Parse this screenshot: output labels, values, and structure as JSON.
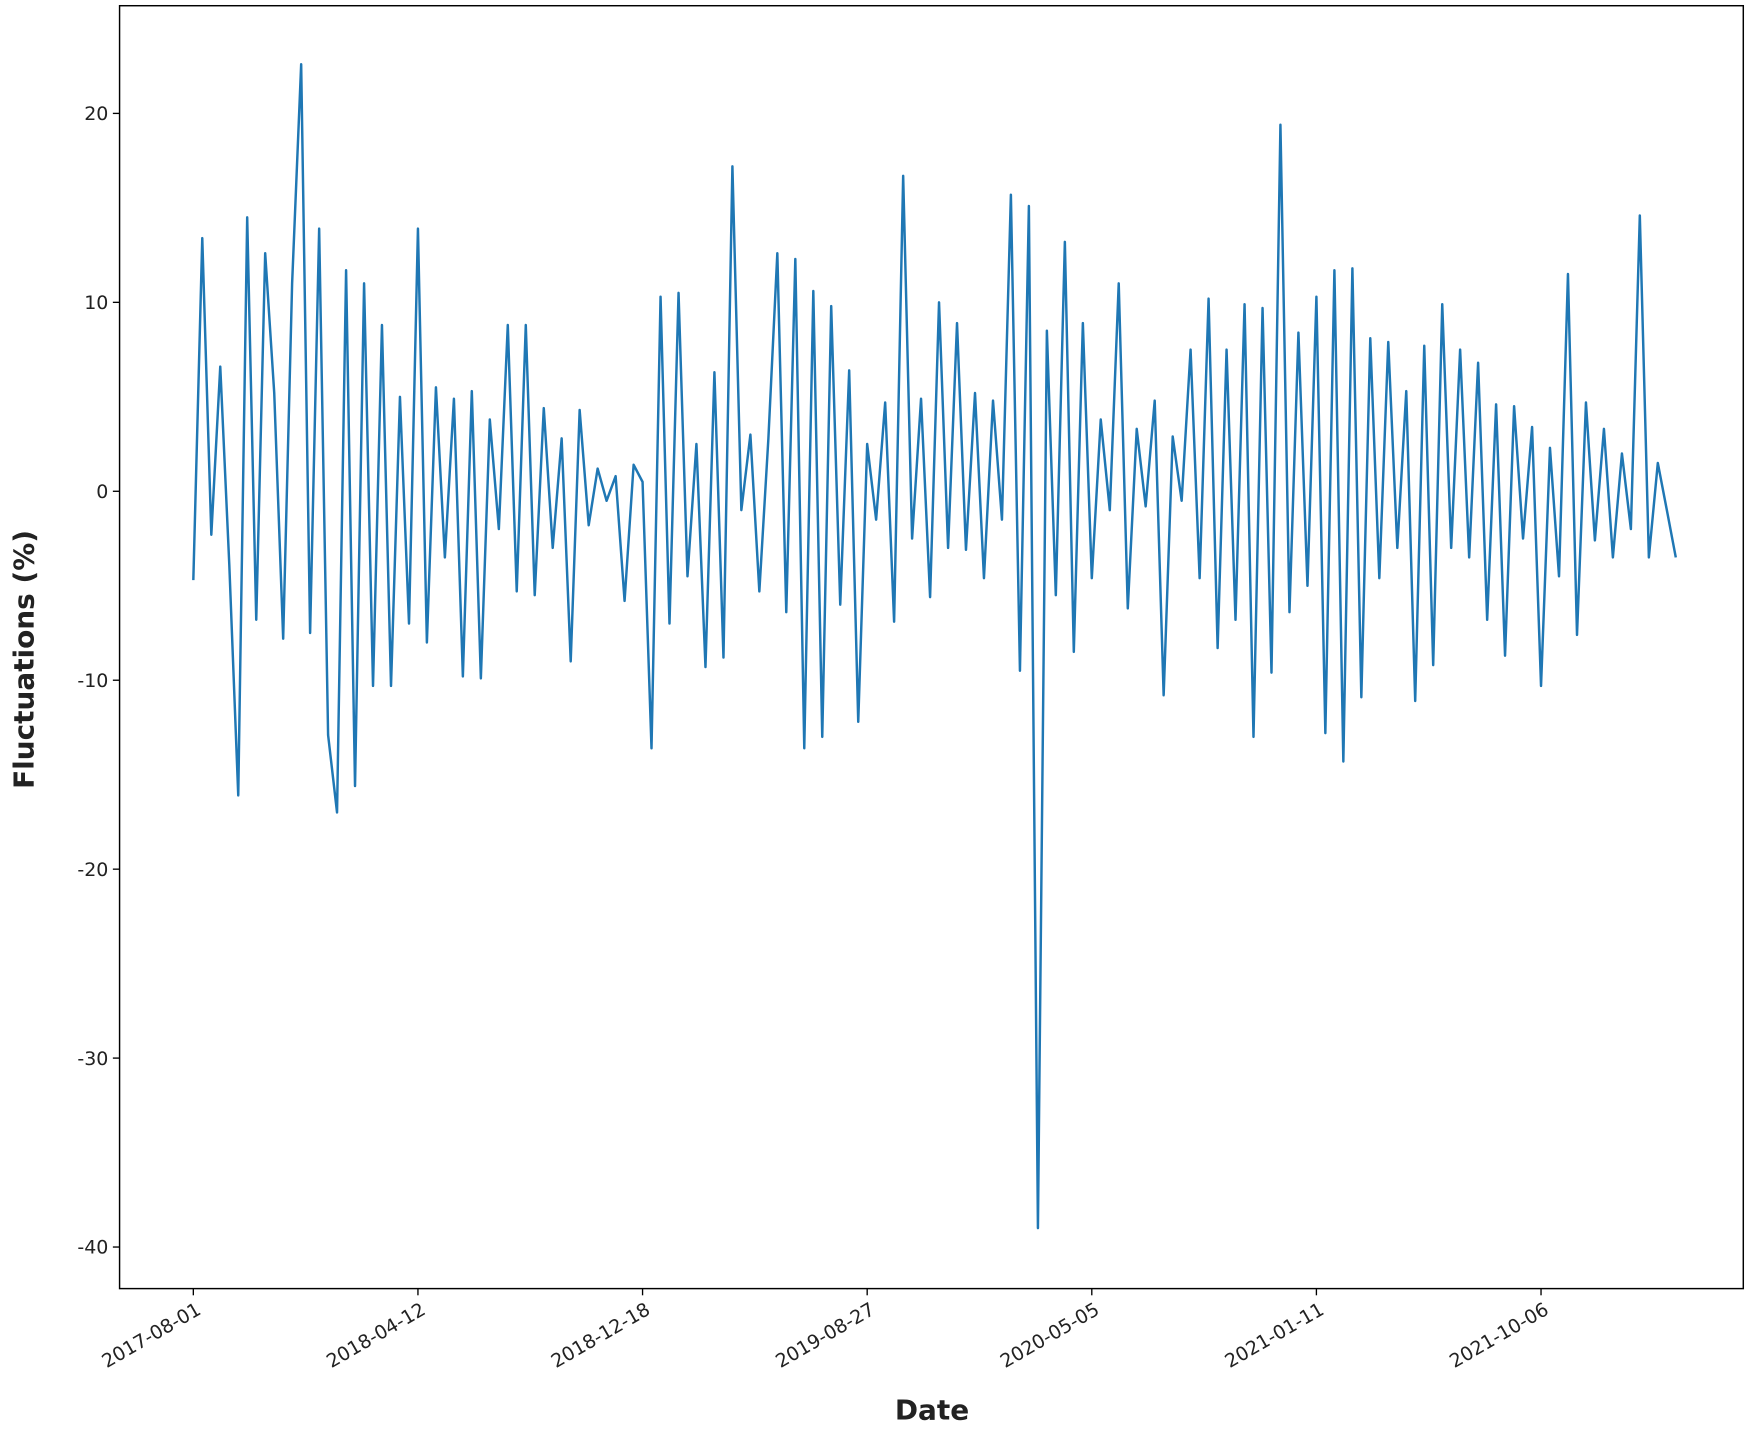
{
  "chart_data": {
    "type": "line",
    "xlabel": "Date",
    "ylabel": "Fluctuations (%)",
    "color": "#1f77b4",
    "grid": false,
    "ylim": [
      -42.2,
      25.7
    ],
    "yticks": [
      -40,
      -30,
      -20,
      -10,
      0,
      10,
      20
    ],
    "categories": [
      "2017-08-01",
      null,
      null,
      null,
      null,
      null,
      null,
      null,
      null,
      null,
      null,
      null,
      null,
      null,
      null,
      null,
      null,
      null,
      null,
      null,
      null,
      null,
      null,
      null,
      null,
      "2018-04-12",
      null,
      null,
      null,
      null,
      null,
      null,
      null,
      null,
      null,
      null,
      null,
      null,
      null,
      null,
      null,
      null,
      null,
      null,
      null,
      null,
      null,
      null,
      null,
      null,
      "2018-12-18",
      null,
      null,
      null,
      null,
      null,
      null,
      null,
      null,
      null,
      null,
      null,
      null,
      null,
      null,
      null,
      null,
      null,
      null,
      null,
      null,
      null,
      null,
      null,
      null,
      "2019-08-27",
      null,
      null,
      null,
      null,
      null,
      null,
      null,
      null,
      null,
      null,
      null,
      null,
      null,
      null,
      null,
      null,
      null,
      null,
      null,
      null,
      null,
      null,
      null,
      null,
      "2020-05-05",
      null,
      null,
      null,
      null,
      null,
      null,
      null,
      null,
      null,
      null,
      null,
      null,
      null,
      null,
      null,
      null,
      null,
      null,
      null,
      null,
      null,
      null,
      null,
      null,
      "2021-01-11",
      null,
      null,
      null,
      null,
      null,
      null,
      null,
      null,
      null,
      null,
      null,
      null,
      null,
      null,
      null,
      null,
      null,
      null,
      null,
      null,
      null,
      null,
      null,
      null,
      "2021-10-06",
      null,
      null,
      null,
      null,
      null,
      null,
      null,
      null,
      null,
      null,
      null,
      null,
      null,
      null,
      null
    ],
    "values": [
      -4.7,
      13.4,
      -2.3,
      6.6,
      -3.9,
      -16.1,
      14.5,
      -6.8,
      12.6,
      5.2,
      -7.8,
      11.0,
      22.6,
      -7.5,
      13.9,
      -12.9,
      -17.0,
      11.7,
      -15.6,
      11.0,
      -10.3,
      8.8,
      -10.3,
      5.0,
      -7.0,
      13.9,
      -8.0,
      5.5,
      -3.5,
      4.9,
      -9.8,
      5.3,
      -9.9,
      3.8,
      -2.0,
      8.8,
      -5.3,
      8.8,
      -5.5,
      4.4,
      -3.0,
      2.8,
      -9.0,
      4.3,
      -1.8,
      1.2,
      -0.5,
      0.8,
      -5.8,
      1.4,
      0.5,
      -13.6,
      10.3,
      -7.0,
      10.5,
      -4.5,
      2.5,
      -9.3,
      6.3,
      -8.8,
      17.2,
      -1.0,
      3.0,
      -5.3,
      2.8,
      12.6,
      -6.4,
      12.3,
      -13.6,
      10.6,
      -13.0,
      9.8,
      -6.0,
      6.4,
      -12.2,
      2.5,
      -1.5,
      4.7,
      -6.9,
      16.7,
      -2.5,
      4.9,
      -5.6,
      10.0,
      -3.0,
      8.9,
      -3.1,
      5.2,
      -4.6,
      4.8,
      -1.5,
      15.7,
      -9.5,
      15.1,
      -39.0,
      8.5,
      -5.5,
      13.2,
      -8.5,
      8.9,
      -4.6,
      3.8,
      -1.0,
      11.0,
      -6.2,
      3.3,
      -0.8,
      4.8,
      -10.8,
      2.9,
      -0.5,
      7.5,
      -4.6,
      10.2,
      -8.3,
      7.5,
      -6.8,
      9.9,
      -13.0,
      9.7,
      -9.6,
      19.4,
      -6.4,
      8.4,
      -5.0,
      10.3,
      -12.8,
      11.7,
      -14.3,
      11.8,
      -10.9,
      8.1,
      -4.6,
      7.9,
      -3.0,
      5.3,
      -11.1,
      7.7,
      -9.2,
      9.9,
      -3.0,
      7.5,
      -3.5,
      6.8,
      -6.8,
      4.6,
      -8.7,
      4.5,
      -2.5,
      3.4,
      -10.3,
      2.3,
      -4.5,
      11.5,
      -7.6,
      4.7,
      -2.6,
      3.3,
      -3.5,
      2.0,
      -2.0,
      14.6,
      -3.5,
      1.5,
      -1.0,
      -3.5
    ]
  }
}
